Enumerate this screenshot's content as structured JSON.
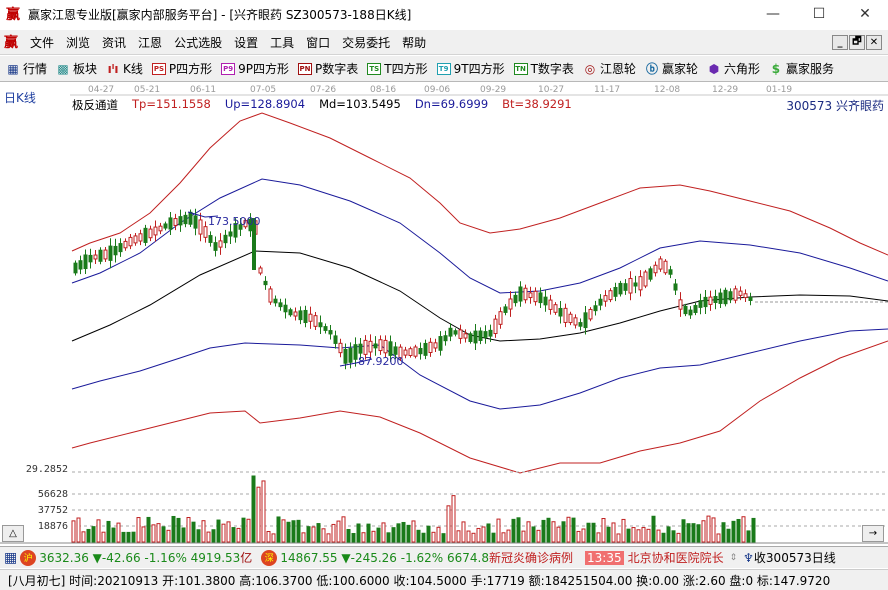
{
  "window": {
    "logo": "赢",
    "title": "赢家江恩专业版[赢家内部服务平台] - [兴齐眼药  SZ300573-188日K线]",
    "minimize": "—",
    "maximize": "☐",
    "close": "✕"
  },
  "menu": {
    "logo": "赢",
    "items": [
      "文件",
      "浏览",
      "资讯",
      "江恩",
      "公式选股",
      "设置",
      "工具",
      "窗口",
      "交易委托",
      "帮助"
    ],
    "mdi_buttons": [
      "_",
      "🗗",
      "✕"
    ]
  },
  "toolbar": {
    "items": [
      {
        "label": "行情",
        "icon": "table-icon",
        "glyph": "▦",
        "color": "#1a3a8a"
      },
      {
        "label": "板块",
        "icon": "blocks-icon",
        "glyph": "▩",
        "color": "#208a8a"
      },
      {
        "label": "K线",
        "icon": "candlestick-icon",
        "glyph": "ıˡı",
        "color": "#c02020"
      },
      {
        "label": "P四方形",
        "icon": "ps-icon",
        "glyph": "PS",
        "color": "#c02020"
      },
      {
        "label": "9P四方形",
        "icon": "p9-icon",
        "glyph": "P9",
        "color": "#b020b0"
      },
      {
        "label": "P数字表",
        "icon": "pn-icon",
        "glyph": "PN",
        "color": "#a01010"
      },
      {
        "label": "T四方形",
        "icon": "ts-icon",
        "glyph": "TS",
        "color": "#208a20"
      },
      {
        "label": "9T四方形",
        "icon": "t9-icon",
        "glyph": "T9",
        "color": "#20a0b0"
      },
      {
        "label": "T数字表",
        "icon": "tn-icon",
        "glyph": "TN",
        "color": "#208a20"
      },
      {
        "label": "江恩轮",
        "icon": "gann-wheel-icon",
        "glyph": "◎",
        "color": "#a01010"
      },
      {
        "label": "赢家轮",
        "icon": "big-wheel-icon",
        "glyph": "ⓑ",
        "color": "#1a6aa0"
      },
      {
        "label": "六角形",
        "icon": "hexagon-icon",
        "glyph": "⬢",
        "color": "#6a2ab0"
      },
      {
        "label": "赢家服务",
        "icon": "dollar-icon",
        "glyph": "$",
        "color": "#3aaa3a"
      }
    ]
  },
  "chart": {
    "period_label": "日K线",
    "stock_code_name": "300573  兴齐眼药",
    "indicator_name": "极反通道",
    "legend": [
      {
        "label": "Tp=151.1558",
        "color": "#c02020"
      },
      {
        "label": "Up=128.8904",
        "color": "#1a1a9a"
      },
      {
        "label": "Md=103.5495",
        "color": "#000000"
      },
      {
        "label": "Dn=69.6999",
        "color": "#1a1a9a"
      },
      {
        "label": "Bt=38.9291",
        "color": "#c02020"
      }
    ],
    "high_marker": "173.5000",
    "low_marker": "87.9200",
    "vol_axis_top": "29.2852",
    "vol_ticks": [
      "56628",
      "37752",
      "18876"
    ],
    "scroll_left": "△",
    "scroll_right": "→"
  },
  "chart_data": {
    "type": "candlestick",
    "title": "兴齐眼药 SZ300573 日K线 - 极反通道",
    "x_dates": [
      "04-27",
      "05-21",
      "06-11",
      "07-05",
      "07-26",
      "08-16",
      "09-06",
      "09-29",
      "10-27",
      "11-17",
      "12-08",
      "12-29",
      "01-19"
    ],
    "indicator": {
      "name": "极反通道",
      "Tp": 151.1558,
      "Up": 128.8904,
      "Md": 103.5495,
      "Dn": 69.6999,
      "Bt": 38.9291
    },
    "annotations": [
      {
        "label": "173.5000",
        "type": "high"
      },
      {
        "label": "87.9200",
        "type": "low"
      }
    ],
    "volume_axis": {
      "ticks": [
        18876,
        37752,
        56628
      ]
    },
    "last_bar": {
      "date": "20210913",
      "open": 101.38,
      "high": 106.37,
      "low": 100.6,
      "close": 104.5,
      "volume": 17719,
      "amount": 184251504.0,
      "turnover": 0.0,
      "change": 2.6
    }
  },
  "status1": {
    "sh_badge": "沪",
    "sh_text": "3632.36 ▼-42.66 -1.16% 4919.53",
    "sh_unit": "亿",
    "sz_badge": "深",
    "sz_text": "14867.55 ▼-245.26 -1.62% 6674.8",
    "news1": "新冠炎确诊病例",
    "news_time": "13:35",
    "news2": "北京协和医院院长",
    "receive": "收300573日线"
  },
  "status2": {
    "text": "[八月初七] 时间:20210913 开:101.3800 高:106.3700 低:100.6000 收:104.5000 手:17719 额:184251504.00 换:0.00 涨:2.60 盘:0 标:147.9720"
  }
}
